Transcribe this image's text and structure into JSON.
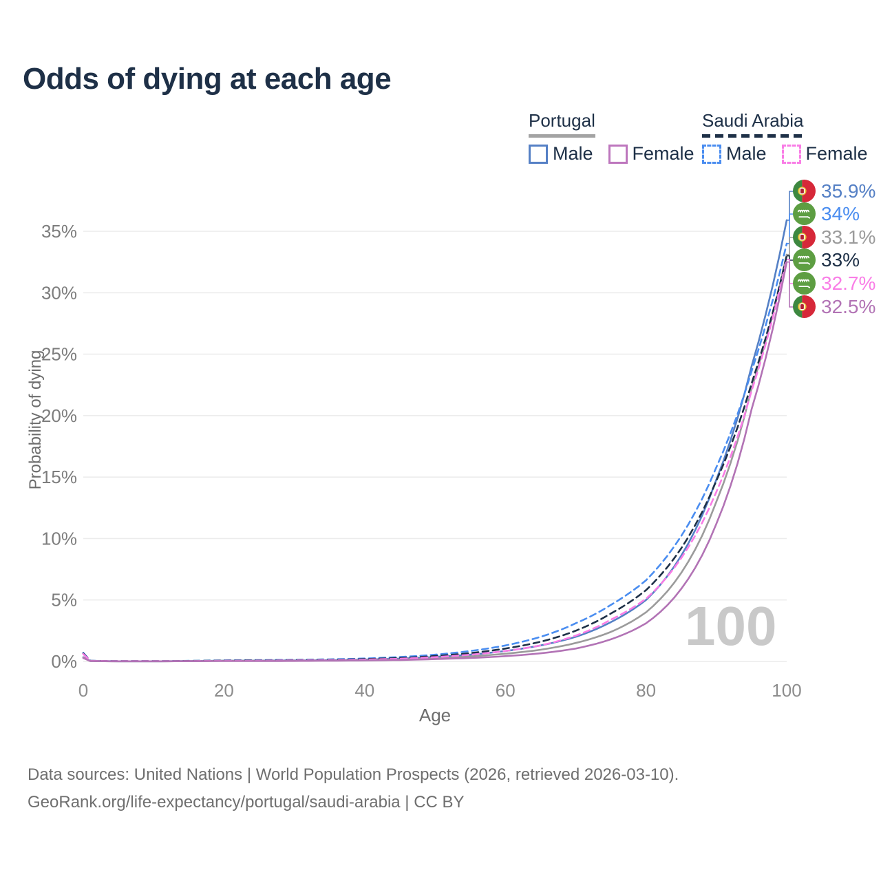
{
  "header": {
    "title": "Odds of dying at each age"
  },
  "legend": {
    "portugal": {
      "label": "Portugal",
      "male": "Male",
      "female": "Female"
    },
    "saudi": {
      "label": "Saudi Arabia",
      "male": "Male",
      "female": "Female"
    }
  },
  "axes": {
    "xlabel": "Age",
    "ylabel": "Probability of dying",
    "x_ticks": [
      0,
      20,
      40,
      60,
      80,
      100
    ],
    "y_ticks": [
      0,
      5,
      10,
      15,
      20,
      25,
      30,
      35
    ],
    "y_tick_suffix": "%"
  },
  "watermark": "100",
  "footer": {
    "line1": "Data sources: United Nations | World Population Prospects (2026, retrieved 2026-03-10).",
    "line2": "GeoRank.org/life-expectancy/portugal/saudi-arabia | CC BY"
  },
  "colors": {
    "title": "#1e3047",
    "axis_text": "#8a8a8a",
    "gridline": "#ececec",
    "portugal_male": "#5580c5",
    "portugal_female": "#b273b5",
    "portugal_both": "#9b9b9b",
    "saudi_male": "#4a8df0",
    "saudi_female": "#f97de6",
    "saudi_both": "#1e3047",
    "portugal_flag_green": "#3d8840",
    "portugal_flag_red": "#d62839",
    "saudi_flag_green": "#5d9e42"
  },
  "chart_data": {
    "type": "line",
    "title": "Odds of dying at each age",
    "xlabel": "Age",
    "ylabel": "Probability of dying",
    "xlim": [
      0,
      100
    ],
    "ylim_percent": [
      0,
      37
    ],
    "grid": "horizontal",
    "legend_position": "top-right",
    "ages": [
      0,
      1,
      5,
      10,
      15,
      20,
      25,
      30,
      35,
      40,
      45,
      50,
      55,
      60,
      65,
      70,
      75,
      80,
      85,
      90,
      95,
      100
    ],
    "series": [
      {
        "id": "portugal-male",
        "country": "Portugal",
        "sex": "Male",
        "color": "#5580c5",
        "dashed": false,
        "flag": "pt",
        "end_label": "35.9%",
        "end_value_percent": 35.9,
        "label_slot": 0,
        "values_percent": [
          0.35,
          0.04,
          0.01,
          0.01,
          0.03,
          0.06,
          0.07,
          0.08,
          0.1,
          0.15,
          0.23,
          0.37,
          0.55,
          0.85,
          1.3,
          2.0,
          3.2,
          5.0,
          8.6,
          14.8,
          24.0,
          35.9
        ]
      },
      {
        "id": "saudi-male",
        "country": "Saudi Arabia",
        "sex": "Male",
        "color": "#4a8df0",
        "dashed": true,
        "flag": "sa",
        "end_label": "34%",
        "end_value_percent": 34.0,
        "label_slot": 1,
        "values_percent": [
          0.7,
          0.06,
          0.02,
          0.02,
          0.05,
          0.09,
          0.11,
          0.13,
          0.17,
          0.24,
          0.36,
          0.55,
          0.85,
          1.3,
          2.0,
          3.1,
          4.6,
          6.6,
          10.2,
          15.8,
          23.6,
          34.0
        ]
      },
      {
        "id": "portugal-both",
        "country": "Portugal",
        "sex": "Both",
        "color": "#9b9b9b",
        "dashed": false,
        "flag": "pt",
        "end_label": "33.1%",
        "end_value_percent": 33.1,
        "label_slot": 2,
        "values_percent": [
          0.32,
          0.03,
          0.01,
          0.01,
          0.02,
          0.05,
          0.05,
          0.06,
          0.08,
          0.11,
          0.17,
          0.27,
          0.41,
          0.63,
          0.95,
          1.5,
          2.4,
          4.0,
          7.2,
          13.0,
          22.2,
          33.1
        ]
      },
      {
        "id": "saudi-both",
        "country": "Saudi Arabia",
        "sex": "Both",
        "color": "#1e3047",
        "dashed": true,
        "flag": "sa",
        "end_label": "33%",
        "end_value_percent": 33.0,
        "label_slot": 3,
        "values_percent": [
          0.65,
          0.05,
          0.02,
          0.02,
          0.04,
          0.07,
          0.08,
          0.1,
          0.13,
          0.19,
          0.28,
          0.44,
          0.68,
          1.05,
          1.6,
          2.5,
          3.9,
          5.8,
          9.2,
          14.7,
          22.6,
          33.0
        ]
      },
      {
        "id": "saudi-female",
        "country": "Saudi Arabia",
        "sex": "Female",
        "color": "#f97de6",
        "dashed": true,
        "flag": "sa",
        "end_label": "32.7%",
        "end_value_percent": 32.7,
        "label_slot": 4,
        "values_percent": [
          0.6,
          0.05,
          0.02,
          0.02,
          0.03,
          0.05,
          0.06,
          0.08,
          0.1,
          0.15,
          0.22,
          0.35,
          0.55,
          0.85,
          1.3,
          2.1,
          3.4,
          5.1,
          8.4,
          13.8,
          22.0,
          32.7
        ]
      },
      {
        "id": "portugal-female",
        "country": "Portugal",
        "sex": "Female",
        "color": "#b273b5",
        "dashed": false,
        "flag": "pt",
        "end_label": "32.5%",
        "end_value_percent": 32.5,
        "label_slot": 5,
        "values_percent": [
          0.28,
          0.03,
          0.01,
          0.01,
          0.02,
          0.03,
          0.03,
          0.04,
          0.06,
          0.08,
          0.12,
          0.19,
          0.28,
          0.43,
          0.66,
          1.05,
          1.8,
          3.1,
          5.9,
          11.2,
          20.5,
          32.5
        ]
      }
    ]
  }
}
